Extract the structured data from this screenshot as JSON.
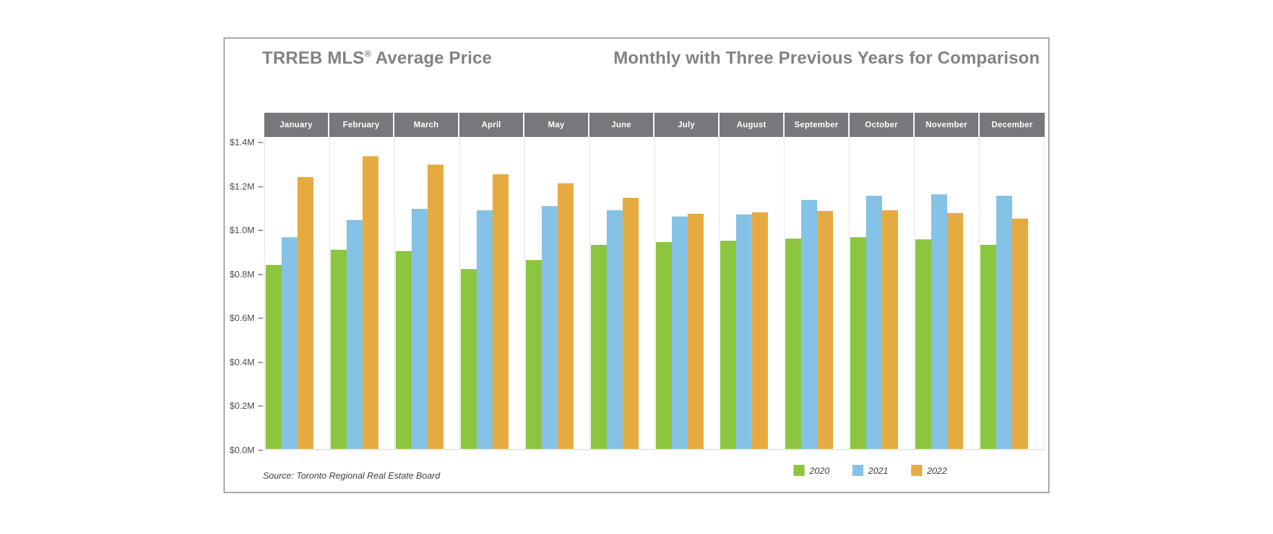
{
  "header": {
    "title_left": {
      "main": "TRREB MLS",
      "sup": "®",
      "rest": " Average Price"
    },
    "title_right": "Monthly with Three Previous Years for Comparison",
    "title_color": "#808285"
  },
  "style_colors": {
    "card_border": "#a6a8ab",
    "month_header_bg": "#77787b",
    "month_header_text": "#ffffff",
    "column_separator": "#e4e5e6",
    "axis_tick_label": "#4d4d4f",
    "tick_dash": "#9b9da0"
  },
  "chart_data": {
    "type": "bar",
    "grouping": "grouped",
    "title": "TRREB MLS® Average Price",
    "subtitle": "Monthly with Three Previous Years for Comparison",
    "categories": [
      "January",
      "February",
      "March",
      "April",
      "May",
      "June",
      "July",
      "August",
      "September",
      "October",
      "November",
      "December"
    ],
    "series": [
      {
        "name": "2020",
        "color": "#8cc63e",
        "values": [
          0.839,
          0.91,
          0.903,
          0.821,
          0.864,
          0.931,
          0.944,
          0.951,
          0.961,
          0.968,
          0.956,
          0.932
        ]
      },
      {
        "name": "2021",
        "color": "#85c3e6",
        "values": [
          0.968,
          1.045,
          1.098,
          1.091,
          1.108,
          1.09,
          1.062,
          1.071,
          1.136,
          1.155,
          1.163,
          1.158
        ]
      },
      {
        "name": "2022",
        "color": "#e6ab40",
        "values": [
          1.243,
          1.335,
          1.3,
          1.254,
          1.213,
          1.146,
          1.075,
          1.08,
          1.087,
          1.089,
          1.079,
          1.051
        ]
      }
    ],
    "values_unit": "$M",
    "y_ticks": [
      {
        "label": "$0.0M",
        "value": 0.0
      },
      {
        "label": "$0.2M",
        "value": 0.2
      },
      {
        "label": "$0.4M",
        "value": 0.4
      },
      {
        "label": "$0.6M",
        "value": 0.6
      },
      {
        "label": "$0.8M",
        "value": 0.8
      },
      {
        "label": "$1.0M",
        "value": 1.0
      },
      {
        "label": "$1.2M",
        "value": 1.2
      },
      {
        "label": "$1.4M",
        "value": 1.4
      }
    ],
    "ylim": [
      0,
      1.425
    ],
    "grid": false,
    "legend_position": "bottom-right"
  },
  "footer": {
    "source": "Source: Toronto Regional Real Estate Board",
    "legend": [
      {
        "label": "2020",
        "color": "#8cc63e"
      },
      {
        "label": "2021",
        "color": "#85c3e6"
      },
      {
        "label": "2022",
        "color": "#e6ab40"
      }
    ]
  }
}
